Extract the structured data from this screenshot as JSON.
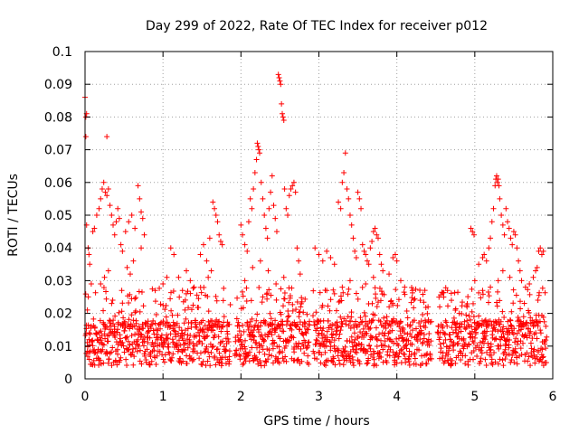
{
  "chart_data": {
    "type": "scatter",
    "title": "Day 299 of 2022, Rate Of TEC Index for receiver p012",
    "xlabel": "GPS time / hours",
    "ylabel": "ROTI / TECUs",
    "xlim": [
      0,
      6
    ],
    "ylim": [
      0,
      0.1
    ],
    "xticks": [
      0,
      1,
      2,
      3,
      4,
      5,
      6
    ],
    "xtick_labels": [
      "0",
      "1",
      "2",
      "3",
      "4",
      "5",
      "6"
    ],
    "yticks": [
      0,
      0.01,
      0.02,
      0.03,
      0.04,
      0.05,
      0.06,
      0.07,
      0.08,
      0.09,
      0.1
    ],
    "ytick_labels": [
      "0",
      "0.01",
      "0.02",
      "0.03",
      "0.04",
      "0.05",
      "0.06",
      "0.07",
      "0.08",
      "0.09",
      "0.1"
    ],
    "grid": true,
    "marker": "+",
    "color": "#ff0000",
    "series": [
      {
        "name": "ROTI",
        "points": [
          [
            0.0,
            0.086
          ],
          [
            0.01,
            0.08
          ],
          [
            0.02,
            0.081
          ],
          [
            0.01,
            0.074
          ],
          [
            0.28,
            0.074
          ],
          [
            0.02,
            0.047
          ],
          [
            0.04,
            0.04
          ],
          [
            0.05,
            0.038
          ],
          [
            0.06,
            0.035
          ],
          [
            0.08,
            0.029
          ],
          [
            0.1,
            0.045
          ],
          [
            0.12,
            0.046
          ],
          [
            0.15,
            0.05
          ],
          [
            0.18,
            0.052
          ],
          [
            0.2,
            0.055
          ],
          [
            0.22,
            0.058
          ],
          [
            0.24,
            0.06
          ],
          [
            0.26,
            0.057
          ],
          [
            0.28,
            0.056
          ],
          [
            0.3,
            0.058
          ],
          [
            0.32,
            0.053
          ],
          [
            0.34,
            0.05
          ],
          [
            0.36,
            0.047
          ],
          [
            0.38,
            0.044
          ],
          [
            0.4,
            0.048
          ],
          [
            0.42,
            0.052
          ],
          [
            0.44,
            0.049
          ],
          [
            0.46,
            0.041
          ],
          [
            0.48,
            0.039
          ],
          [
            0.52,
            0.045
          ],
          [
            0.56,
            0.048
          ],
          [
            0.6,
            0.05
          ],
          [
            0.64,
            0.046
          ],
          [
            0.68,
            0.059
          ],
          [
            0.7,
            0.055
          ],
          [
            0.72,
            0.051
          ],
          [
            0.74,
            0.049
          ],
          [
            0.76,
            0.044
          ],
          [
            0.72,
            0.04
          ],
          [
            0.62,
            0.036
          ],
          [
            0.58,
            0.032
          ],
          [
            0.54,
            0.034
          ],
          [
            0.3,
            0.033
          ],
          [
            0.25,
            0.031
          ],
          [
            0.2,
            0.029
          ],
          [
            1.1,
            0.04
          ],
          [
            1.14,
            0.038
          ],
          [
            1.3,
            0.033
          ],
          [
            1.35,
            0.03
          ],
          [
            1.4,
            0.028
          ],
          [
            1.2,
            0.031
          ],
          [
            1.25,
            0.027
          ],
          [
            1.0,
            0.029
          ],
          [
            1.05,
            0.031
          ],
          [
            0.9,
            0.027
          ],
          [
            1.48,
            0.038
          ],
          [
            1.52,
            0.041
          ],
          [
            1.56,
            0.036
          ],
          [
            1.6,
            0.043
          ],
          [
            1.64,
            0.054
          ],
          [
            1.66,
            0.052
          ],
          [
            1.68,
            0.05
          ],
          [
            1.7,
            0.048
          ],
          [
            1.72,
            0.044
          ],
          [
            1.74,
            0.042
          ],
          [
            1.76,
            0.041
          ],
          [
            1.62,
            0.033
          ],
          [
            1.58,
            0.031
          ],
          [
            2.0,
            0.047
          ],
          [
            2.02,
            0.044
          ],
          [
            2.05,
            0.041
          ],
          [
            2.08,
            0.039
          ],
          [
            2.1,
            0.048
          ],
          [
            2.12,
            0.055
          ],
          [
            2.14,
            0.052
          ],
          [
            2.16,
            0.058
          ],
          [
            2.18,
            0.063
          ],
          [
            2.2,
            0.067
          ],
          [
            2.21,
            0.072
          ],
          [
            2.22,
            0.071
          ],
          [
            2.23,
            0.07
          ],
          [
            2.24,
            0.069
          ],
          [
            2.26,
            0.06
          ],
          [
            2.28,
            0.055
          ],
          [
            2.3,
            0.05
          ],
          [
            2.32,
            0.046
          ],
          [
            2.34,
            0.043
          ],
          [
            2.36,
            0.052
          ],
          [
            2.38,
            0.057
          ],
          [
            2.4,
            0.062
          ],
          [
            2.42,
            0.053
          ],
          [
            2.44,
            0.049
          ],
          [
            2.46,
            0.045
          ],
          [
            2.48,
            0.093
          ],
          [
            2.49,
            0.092
          ],
          [
            2.5,
            0.091
          ],
          [
            2.51,
            0.09
          ],
          [
            2.52,
            0.084
          ],
          [
            2.53,
            0.081
          ],
          [
            2.54,
            0.08
          ],
          [
            2.55,
            0.079
          ],
          [
            2.56,
            0.058
          ],
          [
            2.58,
            0.052
          ],
          [
            2.6,
            0.05
          ],
          [
            2.62,
            0.056
          ],
          [
            2.64,
            0.058
          ],
          [
            2.66,
            0.059
          ],
          [
            2.68,
            0.06
          ],
          [
            2.7,
            0.057
          ],
          [
            2.72,
            0.04
          ],
          [
            2.74,
            0.036
          ],
          [
            2.76,
            0.032
          ],
          [
            2.25,
            0.036
          ],
          [
            2.15,
            0.034
          ],
          [
            2.05,
            0.03
          ],
          [
            2.35,
            0.033
          ],
          [
            2.45,
            0.029
          ],
          [
            2.55,
            0.031
          ],
          [
            2.95,
            0.04
          ],
          [
            3.0,
            0.038
          ],
          [
            3.05,
            0.036
          ],
          [
            3.1,
            0.039
          ],
          [
            3.15,
            0.037
          ],
          [
            3.2,
            0.035
          ],
          [
            3.25,
            0.054
          ],
          [
            3.28,
            0.052
          ],
          [
            3.3,
            0.06
          ],
          [
            3.32,
            0.063
          ],
          [
            3.34,
            0.069
          ],
          [
            3.36,
            0.058
          ],
          [
            3.38,
            0.055
          ],
          [
            3.4,
            0.05
          ],
          [
            3.42,
            0.047
          ],
          [
            3.44,
            0.043
          ],
          [
            3.46,
            0.039
          ],
          [
            3.48,
            0.037
          ],
          [
            3.5,
            0.057
          ],
          [
            3.52,
            0.055
          ],
          [
            3.54,
            0.052
          ],
          [
            3.56,
            0.041
          ],
          [
            3.58,
            0.039
          ],
          [
            3.6,
            0.038
          ],
          [
            3.62,
            0.036
          ],
          [
            3.64,
            0.035
          ],
          [
            3.66,
            0.04
          ],
          [
            3.68,
            0.042
          ],
          [
            3.7,
            0.045
          ],
          [
            3.72,
            0.046
          ],
          [
            3.74,
            0.044
          ],
          [
            3.76,
            0.043
          ],
          [
            3.78,
            0.038
          ],
          [
            3.8,
            0.035
          ],
          [
            3.82,
            0.033
          ],
          [
            3.9,
            0.032
          ],
          [
            3.95,
            0.037
          ],
          [
            3.98,
            0.038
          ],
          [
            4.0,
            0.036
          ],
          [
            4.05,
            0.03
          ],
          [
            4.1,
            0.028
          ],
          [
            4.2,
            0.027
          ],
          [
            4.3,
            0.024
          ],
          [
            4.4,
            0.022
          ],
          [
            3.4,
            0.03
          ],
          [
            3.3,
            0.028
          ],
          [
            3.2,
            0.026
          ],
          [
            3.1,
            0.027
          ],
          [
            3.6,
            0.029
          ],
          [
            3.7,
            0.031
          ],
          [
            4.55,
            0.022
          ],
          [
            4.6,
            0.025
          ],
          [
            4.65,
            0.027
          ],
          [
            4.7,
            0.024
          ],
          [
            4.75,
            0.021
          ],
          [
            4.8,
            0.02
          ],
          [
            4.9,
            0.022
          ],
          [
            4.95,
            0.046
          ],
          [
            4.97,
            0.045
          ],
          [
            4.99,
            0.044
          ],
          [
            5.0,
            0.03
          ],
          [
            5.05,
            0.035
          ],
          [
            5.1,
            0.037
          ],
          [
            5.12,
            0.038
          ],
          [
            5.15,
            0.036
          ],
          [
            5.18,
            0.04
          ],
          [
            5.2,
            0.043
          ],
          [
            5.22,
            0.048
          ],
          [
            5.24,
            0.052
          ],
          [
            5.26,
            0.059
          ],
          [
            5.27,
            0.061
          ],
          [
            5.28,
            0.062
          ],
          [
            5.29,
            0.06
          ],
          [
            5.3,
            0.061
          ],
          [
            5.31,
            0.059
          ],
          [
            5.32,
            0.055
          ],
          [
            5.34,
            0.05
          ],
          [
            5.36,
            0.047
          ],
          [
            5.38,
            0.044
          ],
          [
            5.4,
            0.052
          ],
          [
            5.42,
            0.048
          ],
          [
            5.44,
            0.046
          ],
          [
            5.46,
            0.043
          ],
          [
            5.48,
            0.041
          ],
          [
            5.5,
            0.045
          ],
          [
            5.52,
            0.044
          ],
          [
            5.54,
            0.04
          ],
          [
            5.56,
            0.036
          ],
          [
            5.58,
            0.033
          ],
          [
            5.6,
            0.03
          ],
          [
            5.65,
            0.028
          ],
          [
            5.7,
            0.029
          ],
          [
            5.75,
            0.031
          ],
          [
            5.78,
            0.033
          ],
          [
            5.8,
            0.034
          ],
          [
            5.82,
            0.039
          ],
          [
            5.84,
            0.04
          ],
          [
            5.86,
            0.038
          ],
          [
            5.88,
            0.039
          ],
          [
            5.36,
            0.033
          ],
          [
            5.3,
            0.03
          ],
          [
            5.2,
            0.028
          ],
          [
            5.1,
            0.027
          ],
          [
            5.45,
            0.031
          ]
        ]
      }
    ],
    "background_band": {
      "gap_ranges": [
        [
          1.86,
          1.92
        ],
        [
          2.88,
          2.92
        ],
        [
          4.44,
          4.52
        ]
      ],
      "segments": [
        [
          0.0,
          1.86
        ],
        [
          1.92,
          2.88
        ],
        [
          2.92,
          4.44
        ],
        [
          4.52,
          5.92
        ]
      ],
      "typical_low": 0.004,
      "typical_high": 0.018,
      "density_per_hour": 300
    }
  }
}
